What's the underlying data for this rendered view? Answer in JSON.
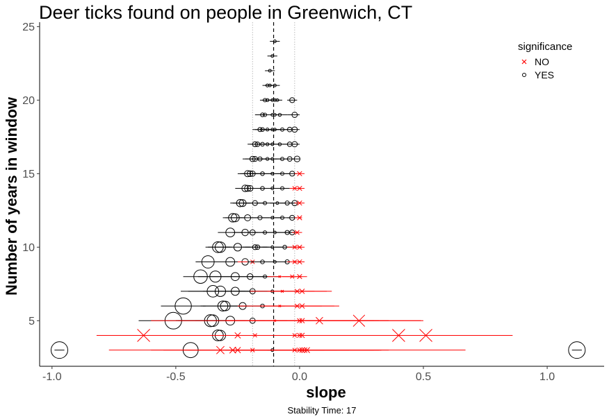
{
  "chart_data": {
    "type": "scatter",
    "title": "Deer ticks found on people in Greenwich, CT",
    "xlabel": "slope",
    "ylabel": "Number of years in window",
    "caption": "Stability Time: 17",
    "xlim": [
      -1.05,
      1.23
    ],
    "ylim": [
      1.9,
      25.3
    ],
    "x_ticks": [
      -1.0,
      -0.5,
      0.0,
      0.5,
      1.0
    ],
    "x_tick_labels": [
      "-1.0",
      "-0.5",
      "0.0",
      "0.5",
      "1.0"
    ],
    "y_ticks": [
      5,
      10,
      15,
      20,
      25
    ],
    "y_tick_labels": [
      "5",
      "10",
      "15",
      "20",
      "25"
    ],
    "grid": false,
    "reference_lines": {
      "dashed_x": -0.105,
      "dotted_x": [
        -0.19,
        -0.02
      ]
    },
    "legend": {
      "title": "significance",
      "position": "top-right",
      "entries": [
        {
          "label": "NO",
          "marker": "x",
          "color": "#ff0000"
        },
        {
          "label": "YES",
          "marker": "circle",
          "color": "#000000"
        }
      ]
    },
    "colors": {
      "significant": "#000000",
      "not_significant": "#ff0000"
    },
    "point_fields": [
      "slope",
      "years",
      "significant",
      "ci_low",
      "ci_high"
    ],
    "points": [
      [
        -0.1,
        24,
        1,
        -0.12,
        -0.08
      ],
      [
        -0.11,
        23,
        1,
        -0.13,
        -0.09
      ],
      [
        -0.12,
        22,
        1,
        -0.14,
        -0.1
      ],
      [
        -0.13,
        21,
        1,
        -0.15,
        -0.11
      ],
      [
        -0.12,
        21,
        1,
        -0.14,
        -0.1
      ],
      [
        -0.1,
        21,
        1,
        -0.12,
        -0.08
      ],
      [
        -0.14,
        20,
        1,
        -0.16,
        -0.11
      ],
      [
        -0.13,
        20,
        1,
        -0.15,
        -0.1
      ],
      [
        -0.11,
        20,
        1,
        -0.13,
        -0.09
      ],
      [
        -0.1,
        20,
        1,
        -0.12,
        -0.08
      ],
      [
        -0.09,
        20,
        1,
        -0.11,
        -0.07
      ],
      [
        -0.03,
        20,
        1,
        -0.05,
        -0.01
      ],
      [
        -0.15,
        19,
        1,
        -0.18,
        -0.12
      ],
      [
        -0.14,
        19,
        1,
        -0.17,
        -0.11
      ],
      [
        -0.11,
        19,
        1,
        -0.14,
        -0.08
      ],
      [
        -0.1,
        19,
        1,
        -0.13,
        -0.07
      ],
      [
        -0.08,
        19,
        1,
        -0.11,
        -0.05
      ],
      [
        -0.02,
        19,
        1,
        -0.05,
        0.0
      ],
      [
        -0.16,
        18,
        1,
        -0.19,
        -0.13
      ],
      [
        -0.15,
        18,
        1,
        -0.18,
        -0.12
      ],
      [
        -0.13,
        18,
        1,
        -0.16,
        -0.1
      ],
      [
        -0.11,
        18,
        1,
        -0.14,
        -0.08
      ],
      [
        -0.1,
        18,
        1,
        -0.13,
        -0.07
      ],
      [
        -0.07,
        18,
        1,
        -0.1,
        -0.04
      ],
      [
        -0.04,
        18,
        1,
        -0.07,
        -0.02
      ],
      [
        -0.02,
        18,
        1,
        -0.04,
        0.0
      ],
      [
        -0.18,
        17,
        1,
        -0.21,
        -0.15
      ],
      [
        -0.17,
        17,
        1,
        -0.2,
        -0.14
      ],
      [
        -0.15,
        17,
        1,
        -0.18,
        -0.12
      ],
      [
        -0.13,
        17,
        1,
        -0.16,
        -0.1
      ],
      [
        -0.11,
        17,
        1,
        -0.14,
        -0.08
      ],
      [
        -0.08,
        17,
        1,
        -0.11,
        -0.05
      ],
      [
        -0.04,
        17,
        1,
        -0.07,
        -0.02
      ],
      [
        -0.02,
        17,
        1,
        -0.04,
        0.0
      ],
      [
        -0.19,
        16,
        1,
        -0.23,
        -0.15
      ],
      [
        -0.18,
        16,
        1,
        -0.22,
        -0.14
      ],
      [
        -0.16,
        16,
        1,
        -0.2,
        -0.12
      ],
      [
        -0.13,
        16,
        1,
        -0.17,
        -0.09
      ],
      [
        -0.11,
        16,
        1,
        -0.15,
        -0.07
      ],
      [
        -0.07,
        16,
        1,
        -0.1,
        -0.04
      ],
      [
        -0.04,
        16,
        1,
        -0.06,
        -0.02
      ],
      [
        -0.01,
        16,
        1,
        -0.03,
        0.0
      ],
      [
        -0.21,
        15,
        1,
        -0.25,
        -0.17
      ],
      [
        -0.2,
        15,
        1,
        -0.24,
        -0.16
      ],
      [
        -0.19,
        15,
        1,
        -0.23,
        -0.15
      ],
      [
        -0.15,
        15,
        1,
        -0.19,
        -0.11
      ],
      [
        -0.11,
        15,
        1,
        -0.15,
        -0.07
      ],
      [
        -0.07,
        15,
        1,
        -0.1,
        -0.04
      ],
      [
        -0.03,
        15,
        1,
        -0.06,
        -0.01
      ],
      [
        0.0,
        15,
        0,
        -0.02,
        0.02
      ],
      [
        -0.22,
        14,
        1,
        -0.26,
        -0.18
      ],
      [
        -0.21,
        14,
        1,
        -0.25,
        -0.17
      ],
      [
        -0.2,
        14,
        1,
        -0.24,
        -0.16
      ],
      [
        -0.15,
        14,
        1,
        -0.19,
        -0.11
      ],
      [
        -0.11,
        14,
        1,
        -0.15,
        -0.07
      ],
      [
        -0.07,
        14,
        1,
        -0.1,
        -0.04
      ],
      [
        -0.02,
        14,
        0,
        -0.04,
        0.0
      ],
      [
        0.0,
        14,
        0,
        -0.02,
        0.02
      ],
      [
        -0.24,
        13,
        1,
        -0.28,
        -0.2
      ],
      [
        -0.23,
        13,
        1,
        -0.27,
        -0.19
      ],
      [
        -0.18,
        13,
        1,
        -0.22,
        -0.14
      ],
      [
        -0.14,
        13,
        1,
        -0.18,
        -0.1
      ],
      [
        -0.09,
        13,
        1,
        -0.12,
        -0.06
      ],
      [
        -0.05,
        13,
        1,
        -0.08,
        -0.02
      ],
      [
        -0.02,
        13,
        1,
        -0.04,
        -0.01
      ],
      [
        0.0,
        13,
        0,
        -0.02,
        0.02
      ],
      [
        -0.27,
        12,
        1,
        -0.31,
        -0.23
      ],
      [
        -0.26,
        12,
        1,
        -0.3,
        -0.22
      ],
      [
        -0.21,
        12,
        1,
        -0.25,
        -0.17
      ],
      [
        -0.16,
        12,
        1,
        -0.2,
        -0.12
      ],
      [
        -0.11,
        12,
        1,
        -0.15,
        -0.07
      ],
      [
        -0.07,
        12,
        1,
        -0.1,
        -0.04
      ],
      [
        -0.03,
        12,
        1,
        -0.05,
        -0.01
      ],
      [
        0.0,
        12,
        0,
        -0.02,
        0.01
      ],
      [
        -0.28,
        11,
        1,
        -0.33,
        -0.23
      ],
      [
        -0.22,
        11,
        1,
        -0.27,
        -0.17
      ],
      [
        -0.19,
        11,
        1,
        -0.24,
        -0.14
      ],
      [
        -0.14,
        11,
        1,
        -0.19,
        -0.09
      ],
      [
        -0.1,
        11,
        1,
        -0.15,
        -0.05
      ],
      [
        -0.05,
        11,
        1,
        -0.09,
        -0.01
      ],
      [
        -0.03,
        11,
        1,
        -0.06,
        -0.01
      ],
      [
        -0.01,
        11,
        0,
        -0.03,
        0.01
      ],
      [
        -0.33,
        10,
        1,
        -0.38,
        -0.28
      ],
      [
        -0.32,
        10,
        1,
        -0.37,
        -0.27
      ],
      [
        -0.25,
        10,
        1,
        -0.3,
        -0.2
      ],
      [
        -0.18,
        10,
        1,
        -0.23,
        -0.13
      ],
      [
        -0.17,
        10,
        1,
        -0.22,
        -0.12
      ],
      [
        -0.11,
        10,
        1,
        -0.15,
        -0.07
      ],
      [
        -0.06,
        10,
        1,
        -0.1,
        -0.02
      ],
      [
        -0.02,
        10,
        0,
        -0.05,
        0.01
      ],
      [
        0.0,
        10,
        0,
        -0.02,
        0.02
      ],
      [
        -0.37,
        9,
        1,
        -0.42,
        -0.32
      ],
      [
        -0.28,
        9,
        1,
        -0.34,
        -0.22
      ],
      [
        -0.22,
        9,
        1,
        -0.28,
        -0.16
      ],
      [
        -0.19,
        9,
        0,
        -0.25,
        -0.13
      ],
      [
        -0.15,
        9,
        1,
        -0.21,
        -0.09
      ],
      [
        -0.1,
        9,
        1,
        -0.15,
        -0.05
      ],
      [
        -0.05,
        9,
        1,
        -0.09,
        -0.01
      ],
      [
        -0.02,
        9,
        0,
        -0.05,
        0.01
      ],
      [
        0.0,
        9,
        0,
        -0.02,
        0.02
      ],
      [
        -0.4,
        8,
        1,
        -0.47,
        -0.33
      ],
      [
        -0.34,
        8,
        1,
        -0.41,
        -0.27
      ],
      [
        -0.26,
        8,
        1,
        -0.33,
        -0.19
      ],
      [
        -0.2,
        8,
        1,
        -0.27,
        -0.13
      ],
      [
        -0.14,
        8,
        1,
        -0.2,
        -0.08
      ],
      [
        -0.08,
        8,
        0,
        -0.13,
        -0.03
      ],
      [
        -0.03,
        8,
        0,
        -0.07,
        0.01
      ],
      [
        0.0,
        8,
        0,
        -0.03,
        0.03
      ],
      [
        -0.35,
        7,
        1,
        -0.48,
        -0.22
      ],
      [
        -0.32,
        7,
        1,
        -0.45,
        -0.19
      ],
      [
        -0.26,
        7,
        1,
        -0.39,
        -0.13
      ],
      [
        -0.19,
        7,
        1,
        -0.32,
        -0.06
      ],
      [
        -0.11,
        7,
        1,
        -0.24,
        0.02
      ],
      [
        -0.07,
        7,
        0,
        -0.2,
        0.06
      ],
      [
        -0.01,
        7,
        0,
        -0.13,
        0.11
      ],
      [
        0.01,
        7,
        0,
        -0.11,
        0.13
      ],
      [
        -0.47,
        6,
        1,
        -0.56,
        -0.38
      ],
      [
        -0.31,
        6,
        1,
        -0.4,
        -0.22
      ],
      [
        -0.3,
        6,
        1,
        -0.39,
        -0.21
      ],
      [
        -0.23,
        6,
        1,
        -0.32,
        -0.14
      ],
      [
        -0.15,
        6,
        1,
        -0.24,
        -0.06
      ],
      [
        -0.08,
        6,
        0,
        -0.25,
        0.09
      ],
      [
        -0.01,
        6,
        0,
        -0.16,
        0.14
      ],
      [
        0.01,
        6,
        0,
        -0.14,
        0.16
      ],
      [
        -0.51,
        5,
        1,
        -0.65,
        -0.37
      ],
      [
        -0.36,
        5,
        1,
        -0.5,
        -0.22
      ],
      [
        -0.35,
        5,
        1,
        -0.49,
        -0.21
      ],
      [
        -0.28,
        5,
        1,
        -0.42,
        -0.14
      ],
      [
        -0.19,
        5,
        1,
        -0.33,
        -0.05
      ],
      [
        -0.1,
        5,
        0,
        -0.6,
        0.5
      ],
      [
        0.0,
        5,
        0,
        -0.3,
        0.3
      ],
      [
        0.01,
        5,
        0,
        -0.3,
        0.32
      ],
      [
        0.08,
        5,
        0,
        -0.2,
        0.36
      ],
      [
        0.24,
        5,
        0,
        0.0,
        0.49
      ],
      [
        -0.63,
        4,
        0,
        -0.82,
        0.86
      ],
      [
        -0.33,
        4,
        1,
        -0.4,
        -0.26
      ],
      [
        -0.32,
        4,
        1,
        -0.39,
        -0.25
      ],
      [
        -0.25,
        4,
        0,
        -0.5,
        0.0
      ],
      [
        -0.18,
        4,
        0,
        -0.45,
        0.1
      ],
      [
        -0.02,
        4,
        0,
        -0.3,
        0.26
      ],
      [
        0.0,
        4,
        0,
        -0.25,
        0.25
      ],
      [
        0.01,
        4,
        0,
        -0.25,
        0.27
      ],
      [
        0.4,
        4,
        0,
        0.1,
        0.7
      ],
      [
        0.51,
        4,
        0,
        0.2,
        0.86
      ],
      [
        -0.97,
        3,
        1,
        -0.99,
        -0.95
      ],
      [
        -0.44,
        3,
        1,
        -0.48,
        -0.4
      ],
      [
        -0.32,
        3,
        0,
        -0.77,
        0.67
      ],
      [
        -0.27,
        3,
        0,
        -0.6,
        0.1
      ],
      [
        -0.25,
        3,
        0,
        -0.55,
        0.15
      ],
      [
        -0.19,
        3,
        0,
        -0.45,
        0.2
      ],
      [
        -0.11,
        3,
        1,
        -0.13,
        -0.09
      ],
      [
        -0.02,
        3,
        0,
        -0.4,
        0.36
      ],
      [
        0.0,
        3,
        0,
        -0.3,
        0.3
      ],
      [
        0.01,
        3,
        0,
        -0.3,
        0.32
      ],
      [
        0.02,
        3,
        0,
        -0.28,
        0.33
      ],
      [
        0.03,
        3,
        0,
        -0.25,
        0.33
      ],
      [
        1.12,
        3,
        1,
        1.1,
        1.14
      ]
    ]
  }
}
